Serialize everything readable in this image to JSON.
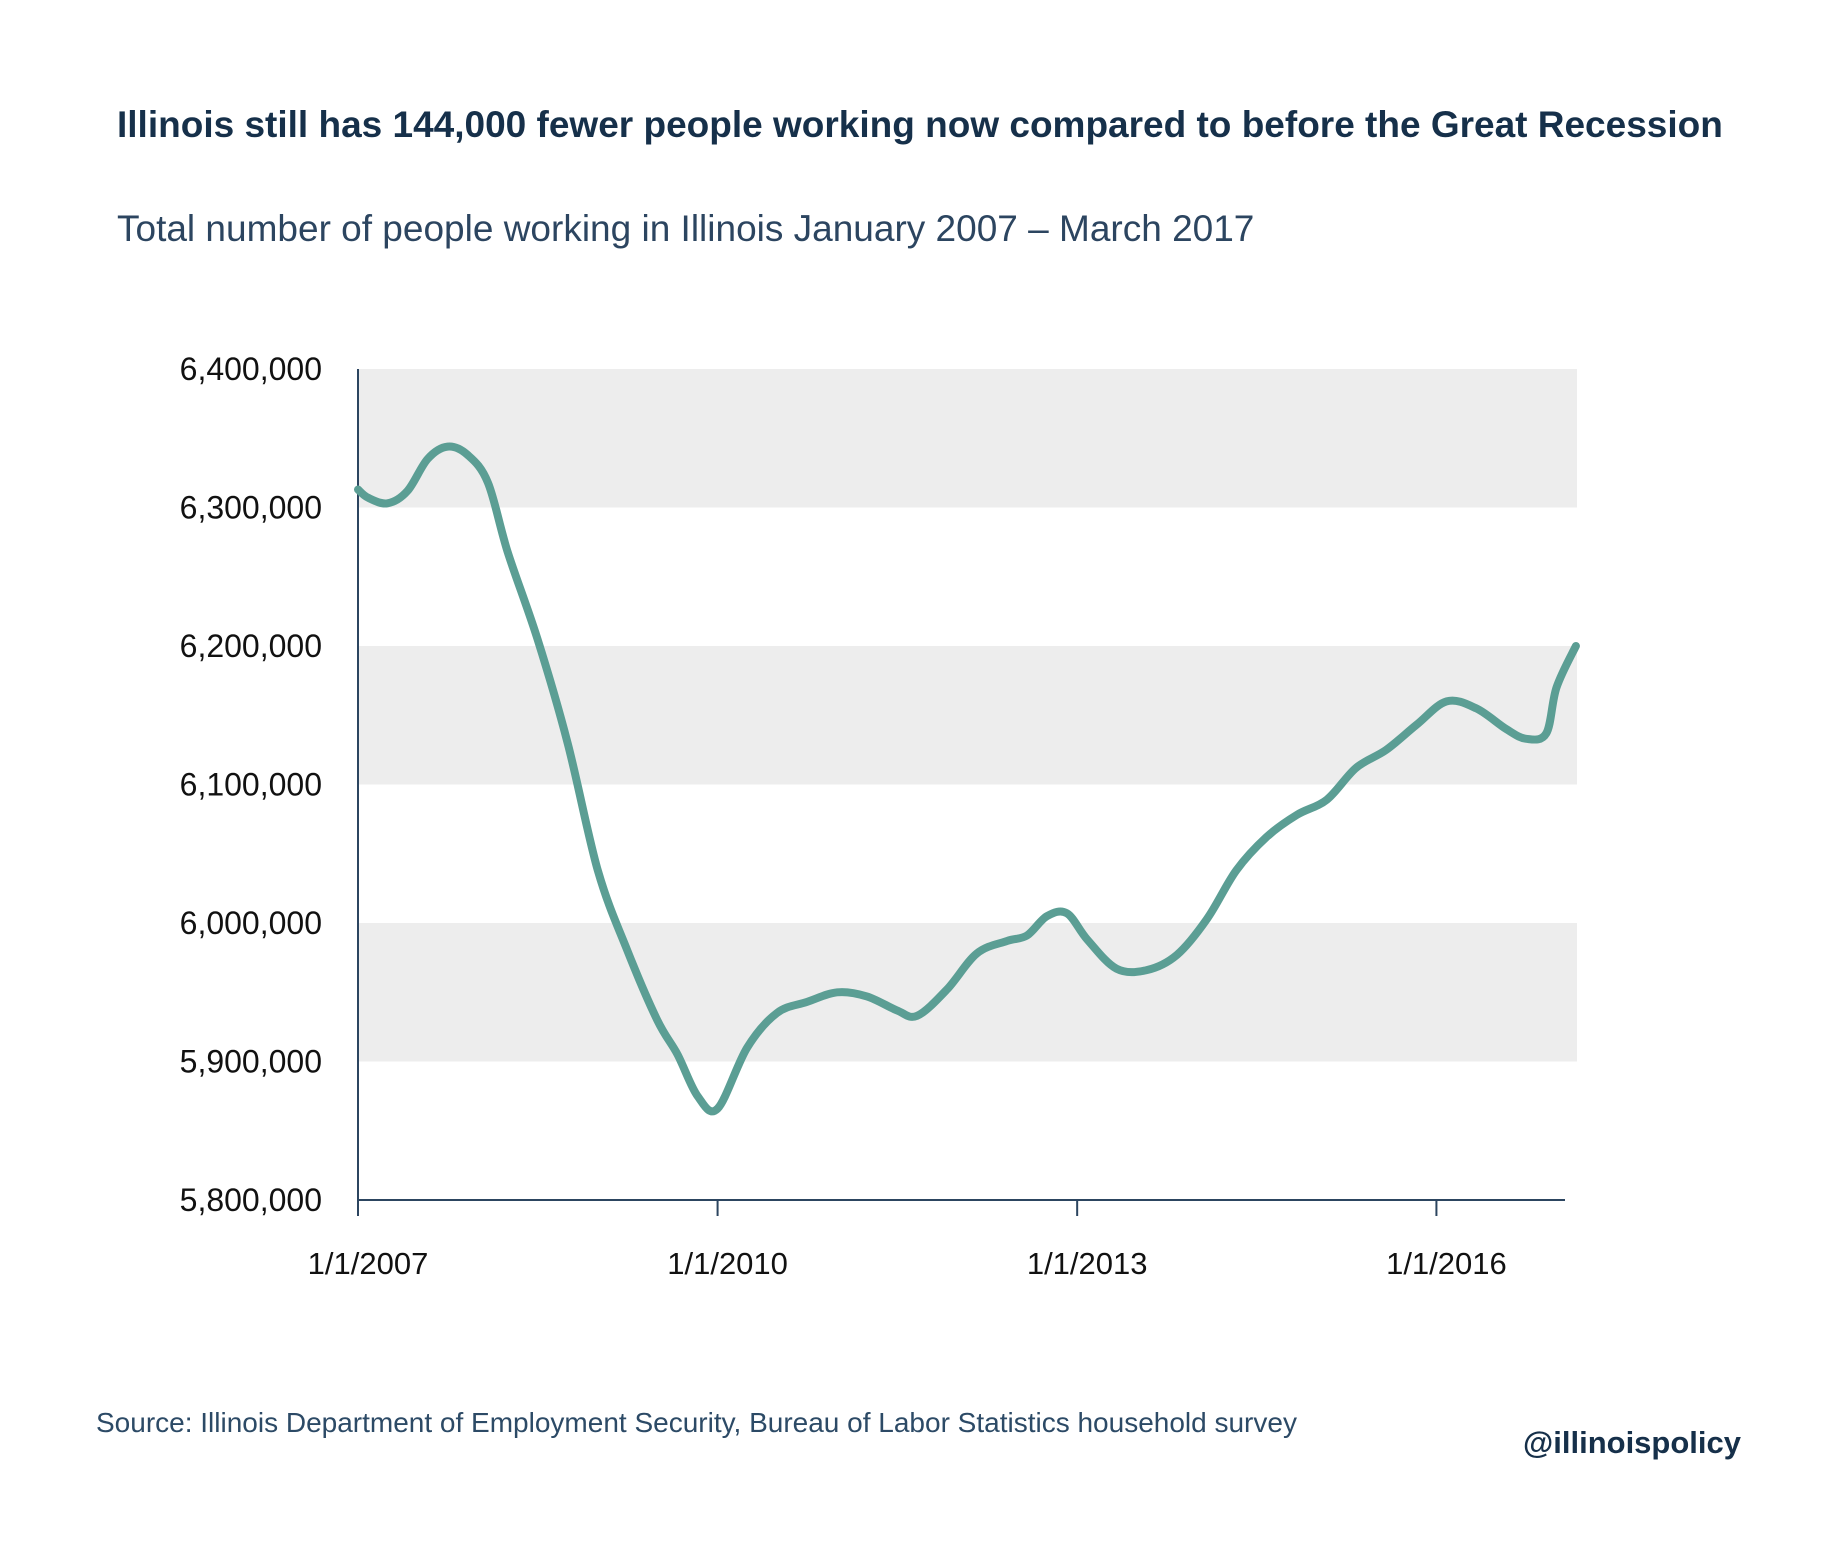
{
  "title": "Illinois still has 144,000 fewer people working now compared to before the Great Recession",
  "subtitle": "Total number of people working in Illinois January 2007 – March 2017",
  "source": "Source:  Illinois Department of Employment Security, Bureau of Labor Statistics household survey",
  "handle": "@illinoispolicy",
  "colors": {
    "line": "#5b9e94",
    "band": "#ededed",
    "axis": "#2c4560",
    "title": "#16304a"
  },
  "chart_data": {
    "type": "line",
    "title": "Illinois still has 144,000 fewer people working now compared to before the Great Recession",
    "subtitle": "Total number of people working in Illinois January 2007 – March 2017",
    "xlabel": "",
    "ylabel": "",
    "ylim": [
      5800000,
      6400000
    ],
    "xlim": [
      "2007-01-01",
      "2017-03-01"
    ],
    "y_ticks": [
      5800000,
      5900000,
      6000000,
      6100000,
      6200000,
      6300000,
      6400000
    ],
    "y_tick_labels": [
      "5,800,000",
      "5,900,000",
      "6,000,000",
      "6,100,000",
      "6,200,000",
      "6,300,000",
      "6,400,000"
    ],
    "x_ticks": [
      "2007-01-01",
      "2010-01-01",
      "2013-01-01",
      "2016-01-01"
    ],
    "x_tick_labels": [
      "1/1/2007",
      "1/1/2010",
      "1/1/2013",
      "1/1/2016"
    ],
    "grid": "alternating horizontal bands",
    "legend": "none",
    "series": [
      {
        "color": "#5b9e94",
        "points": [
          [
            "2007-01-01",
            6313000
          ],
          [
            "2007-02-01",
            6307000
          ],
          [
            "2007-04-01",
            6303000
          ],
          [
            "2007-06-01",
            6312000
          ],
          [
            "2007-08-01",
            6335000
          ],
          [
            "2007-10-01",
            6344000
          ],
          [
            "2007-12-01",
            6338000
          ],
          [
            "2008-02-01",
            6318000
          ],
          [
            "2008-04-01",
            6268000
          ],
          [
            "2008-07-01",
            6205000
          ],
          [
            "2008-10-01",
            6130000
          ],
          [
            "2009-01-01",
            6038000
          ],
          [
            "2009-04-01",
            5980000
          ],
          [
            "2009-07-01",
            5930000
          ],
          [
            "2009-09-01",
            5905000
          ],
          [
            "2009-11-01",
            5875000
          ],
          [
            "2010-01-01",
            5866000
          ],
          [
            "2010-04-01",
            5910000
          ],
          [
            "2010-07-01",
            5935000
          ],
          [
            "2010-10-01",
            5943000
          ],
          [
            "2011-01-01",
            5950000
          ],
          [
            "2011-04-01",
            5947000
          ],
          [
            "2011-07-01",
            5937000
          ],
          [
            "2011-09-01",
            5933000
          ],
          [
            "2011-12-01",
            5952000
          ],
          [
            "2012-03-01",
            5978000
          ],
          [
            "2012-06-01",
            5987000
          ],
          [
            "2012-08-01",
            5991000
          ],
          [
            "2012-10-01",
            6005000
          ],
          [
            "2012-12-01",
            6007000
          ],
          [
            "2013-02-01",
            5988000
          ],
          [
            "2013-05-01",
            5967000
          ],
          [
            "2013-08-01",
            5966000
          ],
          [
            "2013-11-01",
            5977000
          ],
          [
            "2014-02-01",
            6003000
          ],
          [
            "2014-05-01",
            6038000
          ],
          [
            "2014-08-01",
            6062000
          ],
          [
            "2014-11-01",
            6078000
          ],
          [
            "2015-02-01",
            6089000
          ],
          [
            "2015-05-01",
            6112000
          ],
          [
            "2015-08-01",
            6125000
          ],
          [
            "2015-11-01",
            6143000
          ],
          [
            "2016-02-01",
            6160000
          ],
          [
            "2016-05-01",
            6155000
          ],
          [
            "2016-08-01",
            6140000
          ],
          [
            "2016-10-01",
            6133000
          ],
          [
            "2016-12-01",
            6137000
          ],
          [
            "2017-01-01",
            6170000
          ],
          [
            "2017-03-01",
            6200000
          ]
        ]
      }
    ]
  }
}
